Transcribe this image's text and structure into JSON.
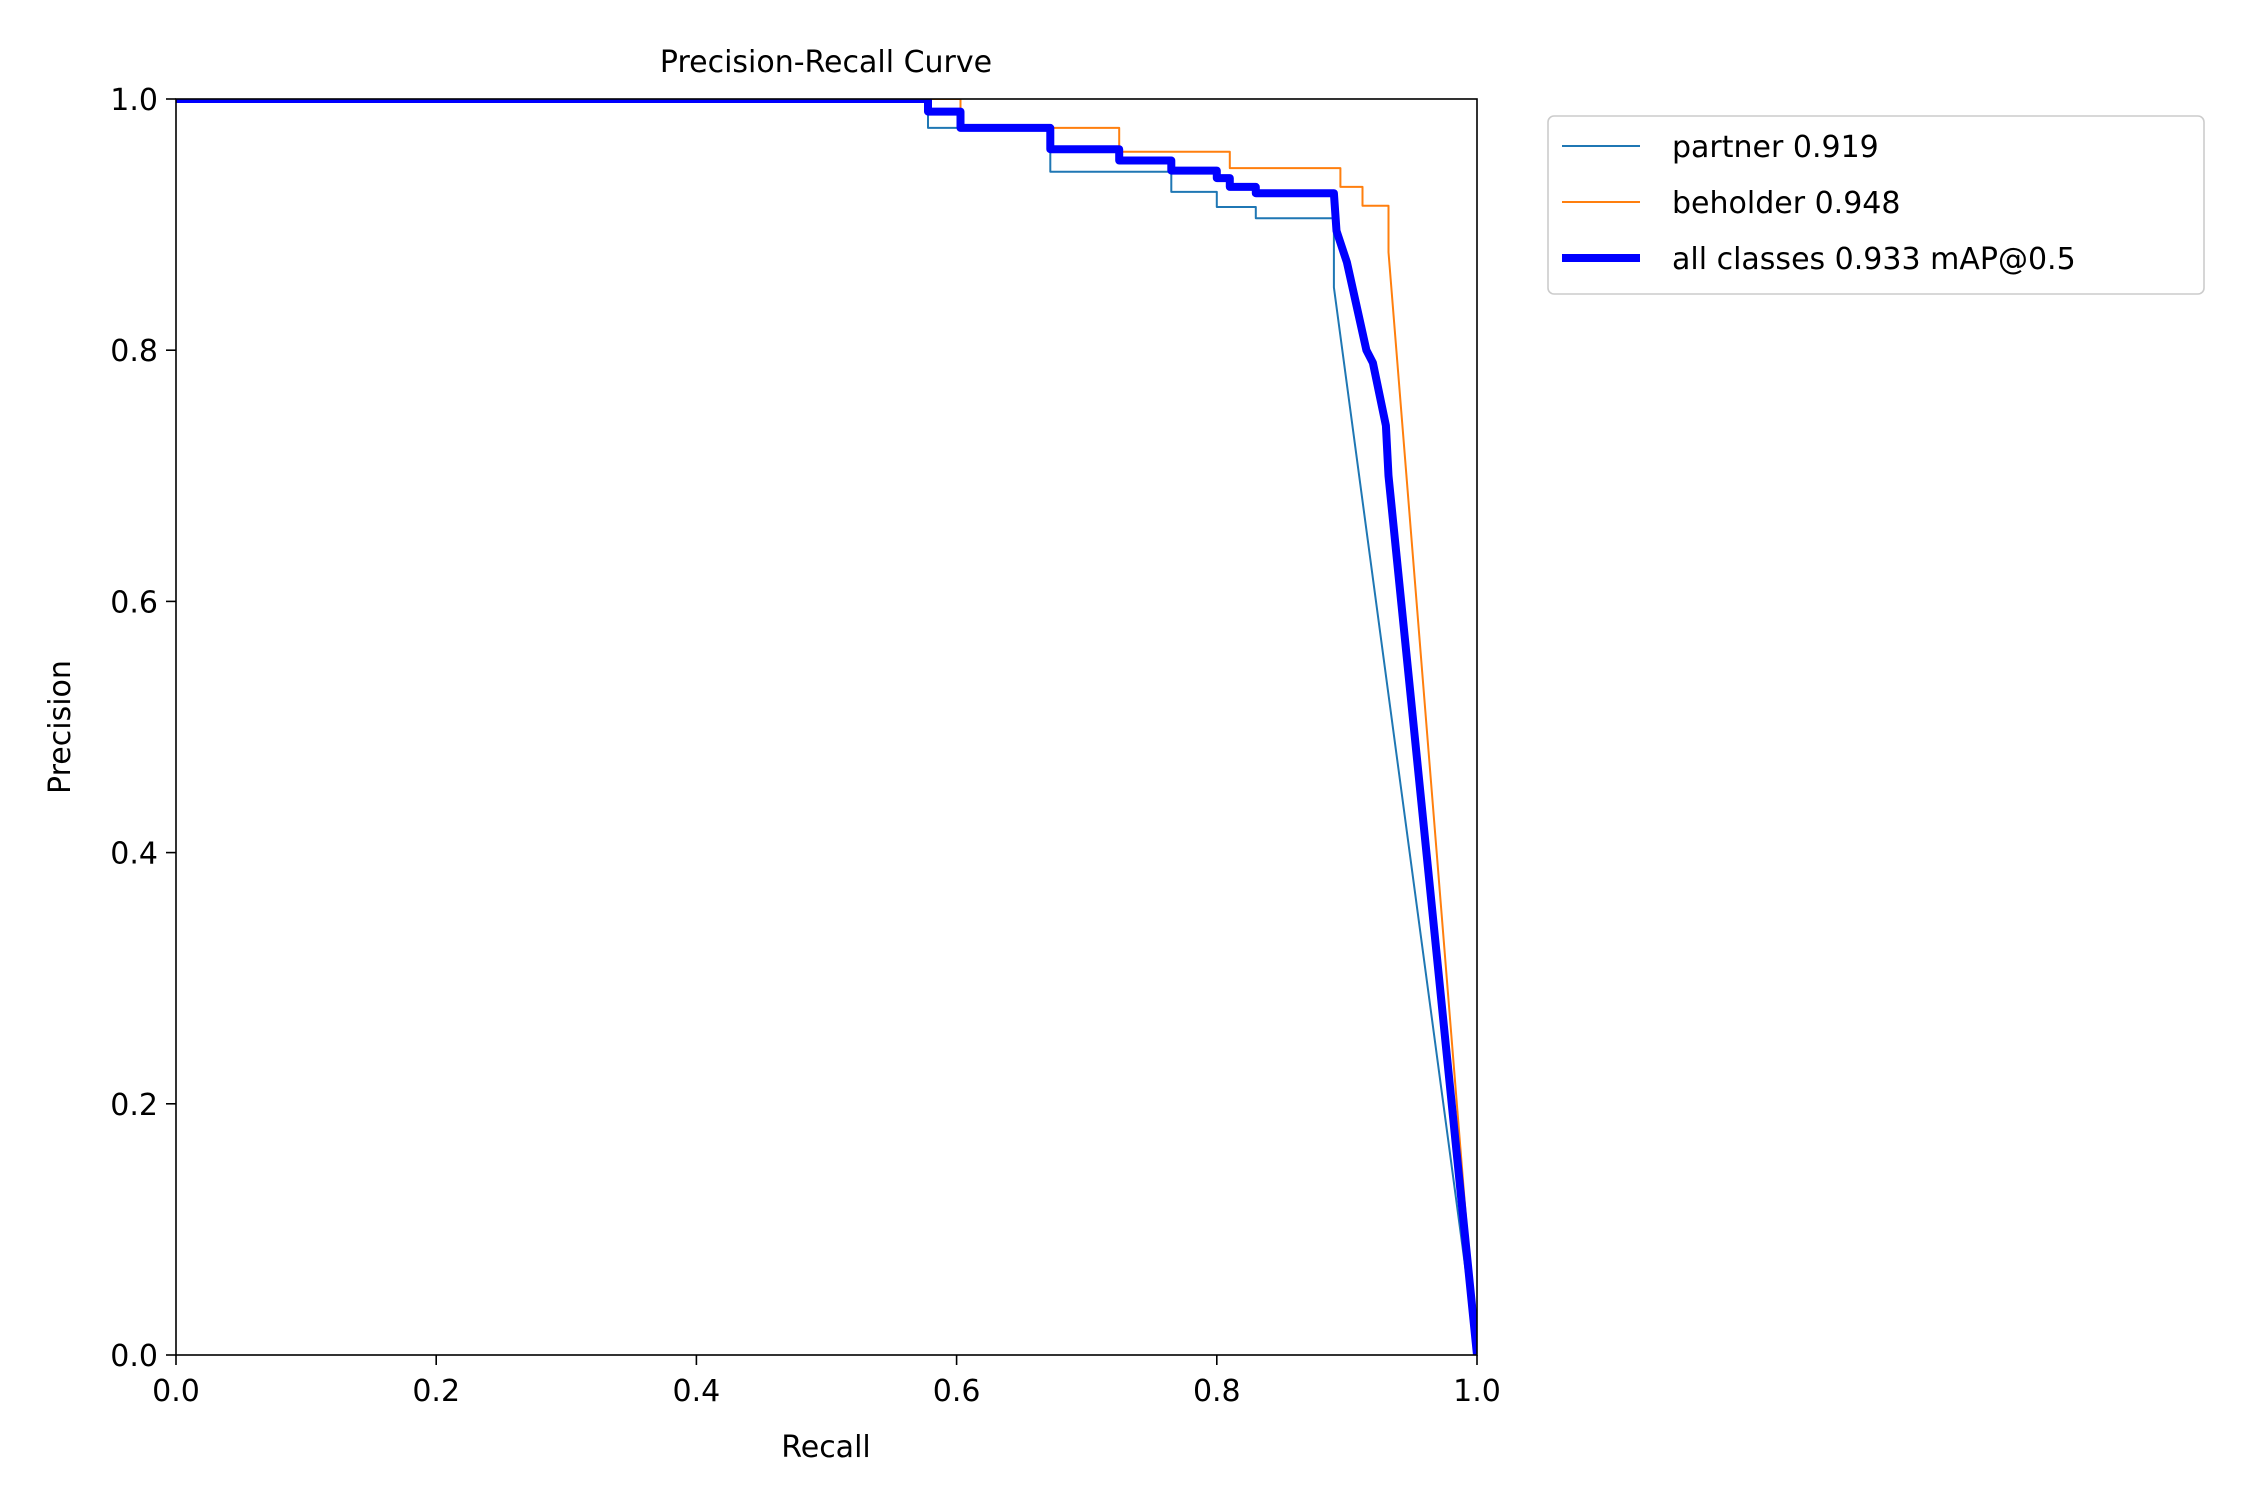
{
  "chart_data": {
    "type": "line",
    "title": "Precision-Recall Curve",
    "xlabel": "Recall",
    "ylabel": "Precision",
    "xlim": [
      0.0,
      1.0
    ],
    "ylim": [
      0.0,
      1.0
    ],
    "xticks": [
      "0.0",
      "0.2",
      "0.4",
      "0.6",
      "0.8",
      "1.0"
    ],
    "yticks": [
      "0.0",
      "0.2",
      "0.4",
      "0.6",
      "0.8",
      "1.0"
    ],
    "grid": false,
    "legend_position": "outside top-right",
    "series": [
      {
        "name": "partner 0.919",
        "color": "#1f77b4",
        "width": "thin",
        "x": [
          0.0,
          0.578,
          0.578,
          0.603,
          0.603,
          0.672,
          0.672,
          0.765,
          0.765,
          0.8,
          0.8,
          0.83,
          0.83,
          0.89,
          0.89,
          1.0
        ],
        "y": [
          1.0,
          1.0,
          0.977,
          0.977,
          0.977,
          0.977,
          0.942,
          0.942,
          0.926,
          0.926,
          0.914,
          0.914,
          0.905,
          0.905,
          0.85,
          0.0
        ]
      },
      {
        "name": "beholder 0.948",
        "color": "#ff7f0e",
        "width": "thin",
        "x": [
          0.0,
          0.603,
          0.603,
          0.725,
          0.725,
          0.81,
          0.81,
          0.895,
          0.895,
          0.912,
          0.912,
          0.932,
          0.932,
          1.0
        ],
        "y": [
          1.0,
          1.0,
          0.977,
          0.977,
          0.958,
          0.958,
          0.945,
          0.945,
          0.93,
          0.93,
          0.915,
          0.915,
          0.878,
          0.0
        ]
      },
      {
        "name": "all classes 0.933 mAP@0.5",
        "color": "#0000ff",
        "width": "thick",
        "x": [
          0.0,
          0.578,
          0.578,
          0.603,
          0.603,
          0.672,
          0.672,
          0.725,
          0.725,
          0.765,
          0.765,
          0.8,
          0.8,
          0.81,
          0.81,
          0.83,
          0.83,
          0.89,
          0.892,
          0.9,
          0.915,
          0.92,
          0.93,
          0.932,
          1.0
        ],
        "y": [
          1.0,
          1.0,
          0.99,
          0.99,
          0.977,
          0.977,
          0.96,
          0.96,
          0.951,
          0.951,
          0.943,
          0.943,
          0.937,
          0.937,
          0.93,
          0.93,
          0.925,
          0.925,
          0.895,
          0.87,
          0.8,
          0.79,
          0.74,
          0.7,
          0.0
        ]
      }
    ]
  }
}
